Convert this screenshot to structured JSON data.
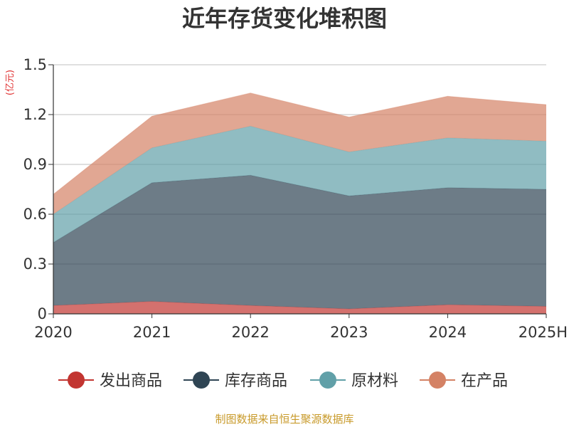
{
  "chart_data": {
    "type": "area",
    "stacked": true,
    "title": "近年存货变化堆积图",
    "unit": "(亿元)",
    "categories": [
      "2020",
      "2021",
      "2022",
      "2023",
      "2024",
      "2025H"
    ],
    "ylim": [
      0,
      1.5
    ],
    "yticks": [
      "0",
      "0.3",
      "0.6",
      "0.9",
      "1.2",
      "1.5"
    ],
    "grid": true,
    "legend_position": "bottom",
    "series": [
      {
        "name": "发出商品",
        "color": "#c23531",
        "values": [
          0.05,
          0.075,
          0.05,
          0.03,
          0.055,
          0.045
        ]
      },
      {
        "name": "库存商品",
        "color": "#2f4554",
        "values": [
          0.38,
          0.715,
          0.785,
          0.68,
          0.705,
          0.705
        ]
      },
      {
        "name": "原材料",
        "color": "#61a0a8",
        "values": [
          0.17,
          0.21,
          0.295,
          0.265,
          0.3,
          0.29
        ]
      },
      {
        "name": "在产品",
        "color": "#d48265",
        "values": [
          0.12,
          0.19,
          0.2,
          0.21,
          0.25,
          0.22
        ]
      }
    ]
  },
  "source": "制图数据来自恒生聚源数据库"
}
